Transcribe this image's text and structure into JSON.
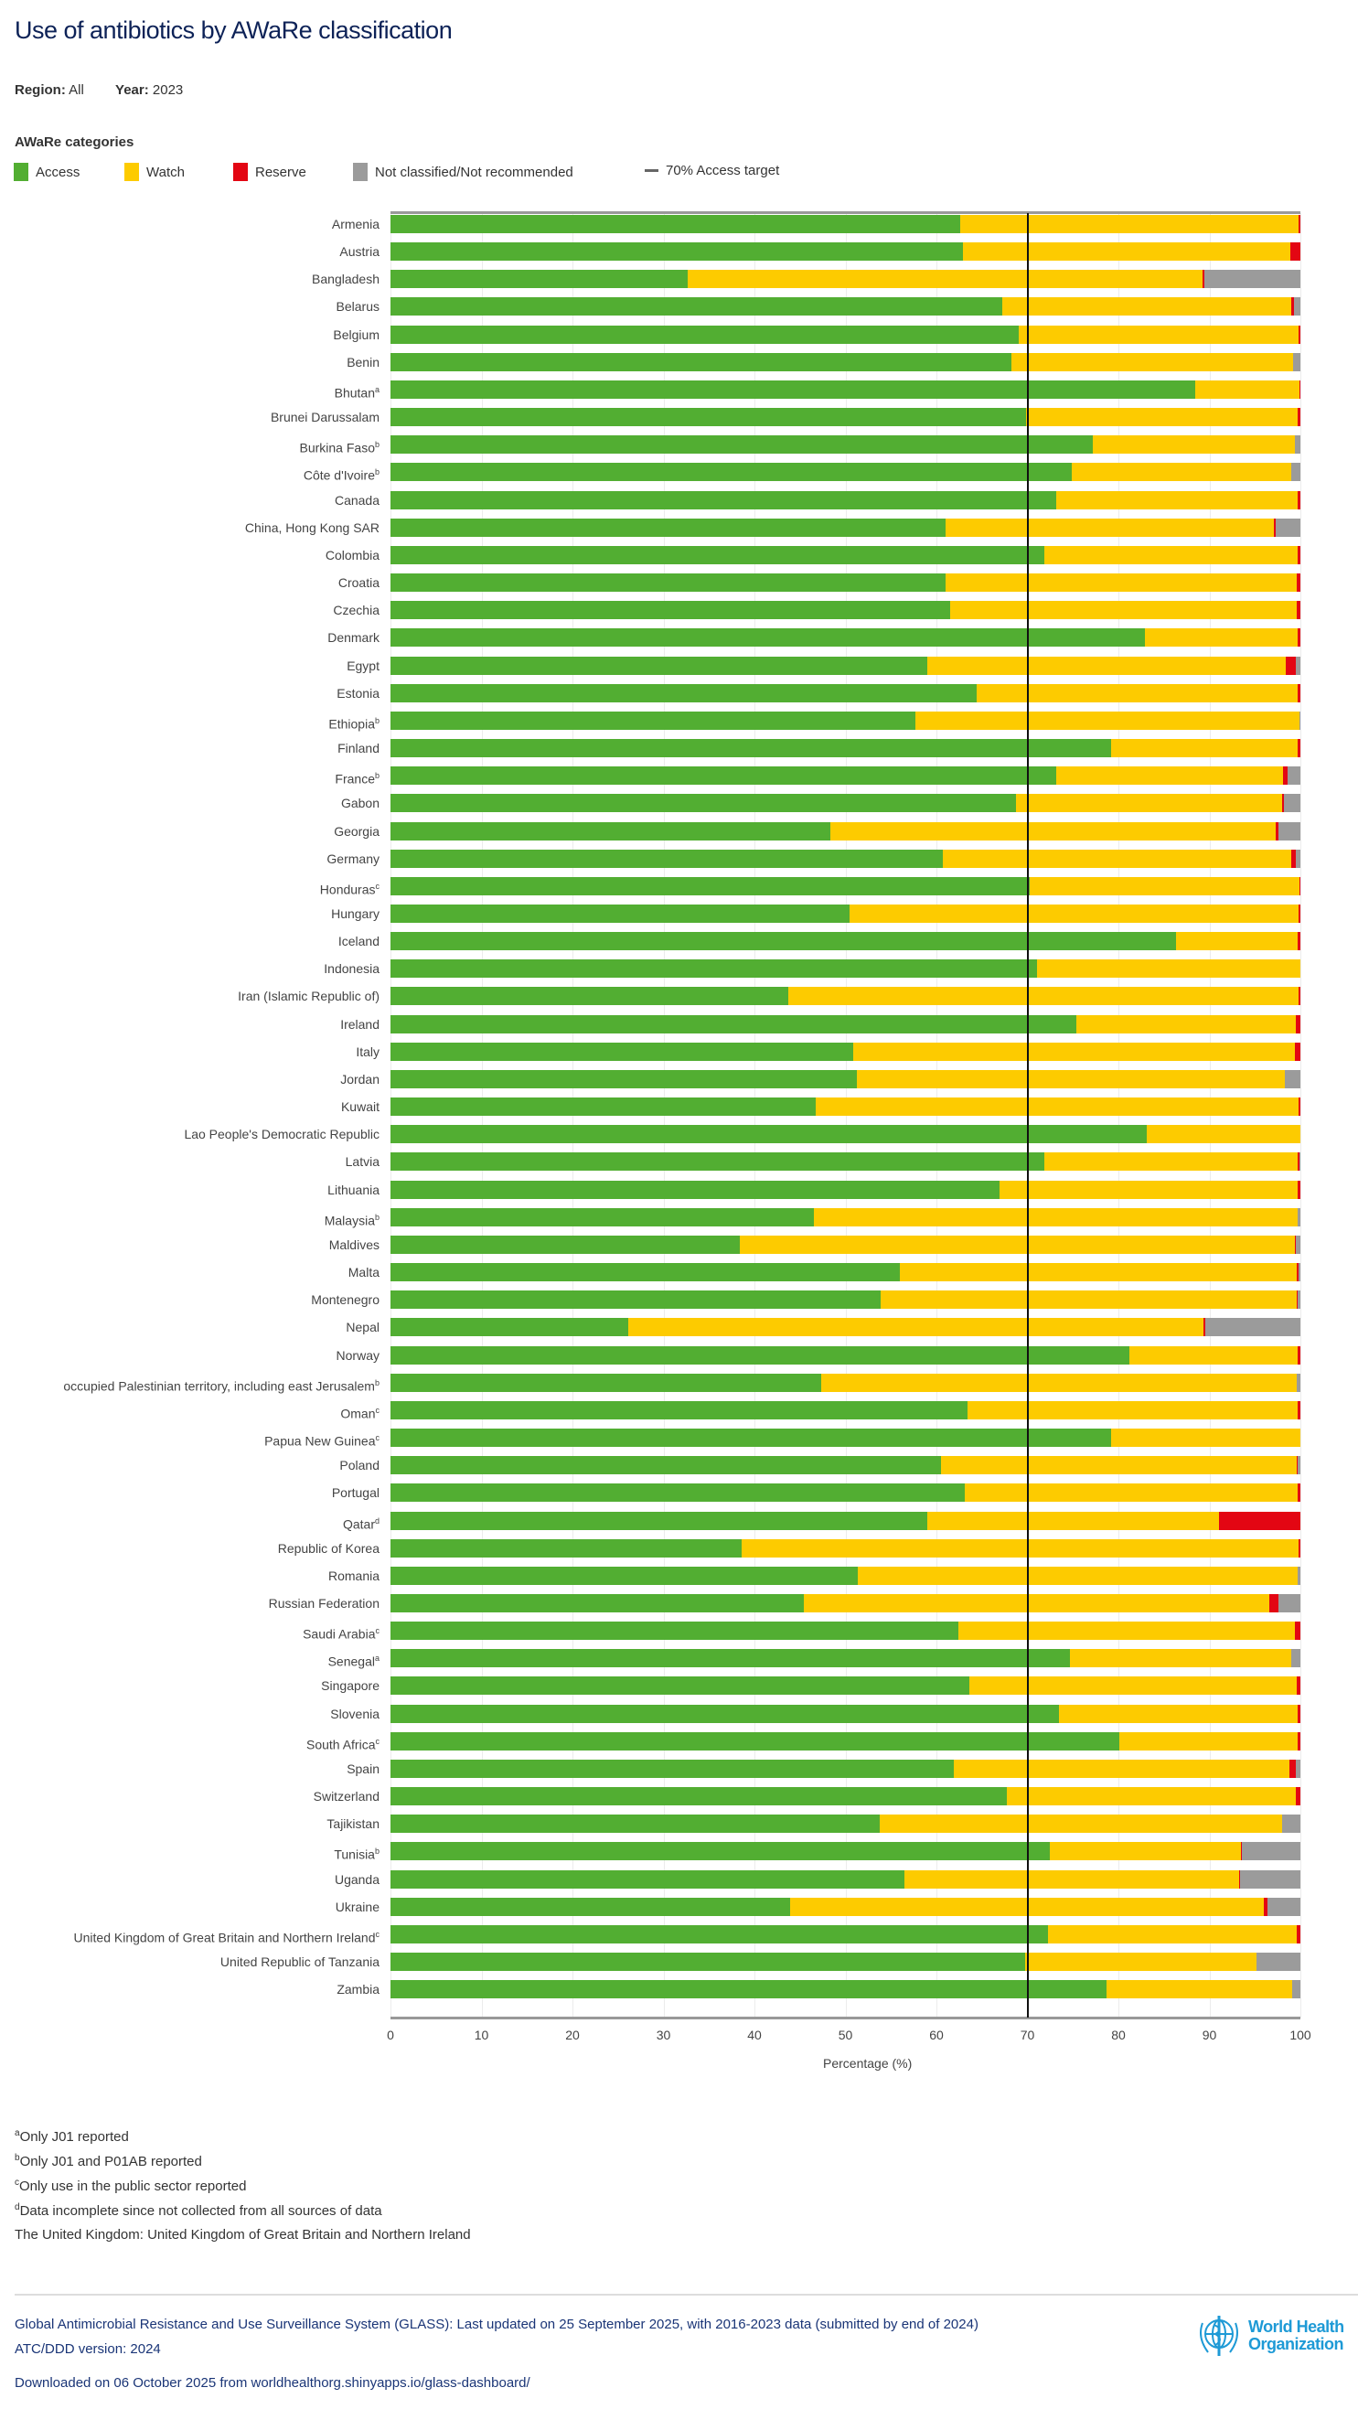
{
  "title": "Use of antibiotics by AWaRe classification",
  "filters": {
    "region_label": "Region:",
    "region": "All",
    "year_label": "Year:",
    "year": "2023"
  },
  "legend": {
    "title": "AWaRe categories",
    "items": [
      {
        "label": "Access",
        "color": "#52ae32"
      },
      {
        "label": "Watch",
        "color": "#fdcb00"
      },
      {
        "label": "Reserve",
        "color": "#e30613"
      },
      {
        "label": "Not classified/Not recommended",
        "color": "#9b9b9b"
      }
    ],
    "target_label": "70% Access target"
  },
  "chart_data": {
    "type": "bar",
    "orientation": "horizontal",
    "stacked": true,
    "xlabel": "Percentage (%)",
    "xlim": [
      0,
      100
    ],
    "xticks": [
      0,
      10,
      20,
      30,
      40,
      50,
      60,
      70,
      80,
      90,
      100
    ],
    "reference_line": {
      "x": 70,
      "label": "70% Access target"
    },
    "series_names": [
      "Access",
      "Watch",
      "Reserve",
      "Not classified/Not recommended"
    ],
    "rows": [
      {
        "country": "Armenia",
        "note": "",
        "values": [
          62.6,
          37.2,
          0.2,
          0
        ]
      },
      {
        "country": "Austria",
        "note": "",
        "values": [
          62.9,
          36.0,
          1.1,
          0
        ]
      },
      {
        "country": "Bangladesh",
        "note": "",
        "values": [
          32.7,
          56.5,
          0.2,
          10.6
        ]
      },
      {
        "country": "Belarus",
        "note": "",
        "values": [
          67.2,
          31.8,
          0.3,
          0.7
        ]
      },
      {
        "country": "Belgium",
        "note": "",
        "values": [
          69.0,
          30.8,
          0.2,
          0
        ]
      },
      {
        "country": "Benin",
        "note": "",
        "values": [
          68.2,
          31.0,
          0,
          0.8
        ]
      },
      {
        "country": "Bhutan",
        "note": "a",
        "values": [
          88.4,
          11.5,
          0.1,
          0
        ]
      },
      {
        "country": "Brunei Darussalam",
        "note": "",
        "values": [
          69.8,
          29.9,
          0.3,
          0
        ]
      },
      {
        "country": "Burkina Faso",
        "note": "b",
        "values": [
          77.2,
          22.2,
          0,
          0.6
        ]
      },
      {
        "country": "Côte d'Ivoire",
        "note": "b",
        "values": [
          74.9,
          24.1,
          0,
          1.0
        ]
      },
      {
        "country": "Canada",
        "note": "",
        "values": [
          73.2,
          26.5,
          0.3,
          0
        ]
      },
      {
        "country": "China, Hong Kong SAR",
        "note": "",
        "values": [
          61.0,
          36.1,
          0.2,
          2.7
        ]
      },
      {
        "country": "Colombia",
        "note": "",
        "values": [
          71.9,
          27.8,
          0.3,
          0
        ]
      },
      {
        "country": "Croatia",
        "note": "",
        "values": [
          61.0,
          38.6,
          0.4,
          0
        ]
      },
      {
        "country": "Czechia",
        "note": "",
        "values": [
          61.5,
          38.1,
          0.4,
          0
        ]
      },
      {
        "country": "Denmark",
        "note": "",
        "values": [
          82.9,
          16.8,
          0.3,
          0
        ]
      },
      {
        "country": "Egypt",
        "note": "",
        "values": [
          59.0,
          39.4,
          1.1,
          0.5
        ]
      },
      {
        "country": "Estonia",
        "note": "",
        "values": [
          64.4,
          35.3,
          0.3,
          0
        ]
      },
      {
        "country": "Ethiopia",
        "note": "b",
        "values": [
          57.7,
          42.2,
          0,
          0.1
        ]
      },
      {
        "country": "Finland",
        "note": "",
        "values": [
          79.2,
          20.5,
          0.3,
          0
        ]
      },
      {
        "country": "France",
        "note": "b",
        "values": [
          73.2,
          24.9,
          0.5,
          1.4
        ]
      },
      {
        "country": "Gabon",
        "note": "",
        "values": [
          68.7,
          29.3,
          0.2,
          1.8
        ]
      },
      {
        "country": "Georgia",
        "note": "",
        "values": [
          48.3,
          49.0,
          0.3,
          2.4
        ]
      },
      {
        "country": "Germany",
        "note": "",
        "values": [
          60.7,
          38.3,
          0.5,
          0.5
        ]
      },
      {
        "country": "Honduras",
        "note": "c",
        "values": [
          70.3,
          29.6,
          0.1,
          0
        ]
      },
      {
        "country": "Hungary",
        "note": "",
        "values": [
          50.5,
          49.3,
          0.2,
          0
        ]
      },
      {
        "country": "Iceland",
        "note": "",
        "values": [
          86.3,
          13.4,
          0.3,
          0
        ]
      },
      {
        "country": "Indonesia",
        "note": "",
        "values": [
          71.1,
          28.9,
          0,
          0
        ]
      },
      {
        "country": "Iran (Islamic Republic of)",
        "note": "",
        "values": [
          43.7,
          56.1,
          0.2,
          0
        ]
      },
      {
        "country": "Ireland",
        "note": "",
        "values": [
          75.4,
          24.1,
          0.5,
          0
        ]
      },
      {
        "country": "Italy",
        "note": "",
        "values": [
          50.9,
          48.5,
          0.6,
          0
        ]
      },
      {
        "country": "Jordan",
        "note": "",
        "values": [
          51.3,
          47.0,
          0,
          1.7
        ]
      },
      {
        "country": "Kuwait",
        "note": "",
        "values": [
          46.7,
          53.1,
          0.2,
          0
        ]
      },
      {
        "country": "Lao People's Democratic Republic",
        "note": "",
        "values": [
          83.1,
          16.9,
          0,
          0
        ]
      },
      {
        "country": "Latvia",
        "note": "",
        "values": [
          71.9,
          27.8,
          0.2,
          0.1
        ]
      },
      {
        "country": "Lithuania",
        "note": "",
        "values": [
          66.9,
          32.8,
          0.3,
          0
        ]
      },
      {
        "country": "Malaysia",
        "note": "b",
        "values": [
          46.5,
          53.2,
          0,
          0.3
        ]
      },
      {
        "country": "Maldives",
        "note": "",
        "values": [
          38.4,
          61.0,
          0.1,
          0.5
        ]
      },
      {
        "country": "Malta",
        "note": "",
        "values": [
          56.0,
          43.6,
          0.2,
          0.2
        ]
      },
      {
        "country": "Montenegro",
        "note": "",
        "values": [
          53.9,
          45.7,
          0.1,
          0.3
        ]
      },
      {
        "country": "Nepal",
        "note": "",
        "values": [
          26.1,
          63.2,
          0.2,
          10.5
        ]
      },
      {
        "country": "Norway",
        "note": "",
        "values": [
          81.2,
          18.5,
          0.3,
          0
        ]
      },
      {
        "country": "occupied Palestinian territory, including east Jerusalem",
        "note": "b",
        "values": [
          47.3,
          52.3,
          0,
          0.4
        ]
      },
      {
        "country": "Oman",
        "note": "c",
        "values": [
          63.4,
          36.3,
          0.3,
          0
        ]
      },
      {
        "country": "Papua New Guinea",
        "note": "c",
        "values": [
          79.2,
          20.8,
          0,
          0
        ]
      },
      {
        "country": "Poland",
        "note": "",
        "values": [
          60.5,
          39.1,
          0.1,
          0.3
        ]
      },
      {
        "country": "Portugal",
        "note": "",
        "values": [
          63.1,
          36.6,
          0.3,
          0
        ]
      },
      {
        "country": "Qatar",
        "note": "d",
        "values": [
          59.0,
          32.1,
          8.9,
          0
        ]
      },
      {
        "country": "Republic of Korea",
        "note": "",
        "values": [
          38.6,
          61.2,
          0.2,
          0
        ]
      },
      {
        "country": "Romania",
        "note": "",
        "values": [
          51.4,
          48.3,
          0,
          0.3
        ]
      },
      {
        "country": "Russian Federation",
        "note": "",
        "values": [
          45.4,
          51.2,
          1.0,
          2.4
        ]
      },
      {
        "country": "Saudi Arabia",
        "note": "c",
        "values": [
          62.4,
          37.0,
          0.6,
          0
        ]
      },
      {
        "country": "Senegal",
        "note": "a",
        "values": [
          74.7,
          24.3,
          0,
          1.0
        ]
      },
      {
        "country": "Singapore",
        "note": "",
        "values": [
          63.6,
          36.0,
          0.4,
          0
        ]
      },
      {
        "country": "Slovenia",
        "note": "",
        "values": [
          73.5,
          26.2,
          0.3,
          0
        ]
      },
      {
        "country": "South Africa",
        "note": "c",
        "values": [
          80.1,
          19.6,
          0.3,
          0
        ]
      },
      {
        "country": "Spain",
        "note": "",
        "values": [
          61.9,
          36.9,
          0.7,
          0.5
        ]
      },
      {
        "country": "Switzerland",
        "note": "",
        "values": [
          67.7,
          31.8,
          0.5,
          0
        ]
      },
      {
        "country": "Tajikistan",
        "note": "",
        "values": [
          53.8,
          44.2,
          0,
          2.0
        ]
      },
      {
        "country": "Tunisia",
        "note": "b",
        "values": [
          72.5,
          21.0,
          0.1,
          6.4
        ]
      },
      {
        "country": "Uganda",
        "note": "",
        "values": [
          56.5,
          36.8,
          0.1,
          6.6
        ]
      },
      {
        "country": "Ukraine",
        "note": "",
        "values": [
          43.9,
          52.1,
          0.4,
          3.6
        ]
      },
      {
        "country": "United Kingdom of Great Britain and Northern Ireland",
        "note": "c",
        "values": [
          72.3,
          27.3,
          0.4,
          0
        ]
      },
      {
        "country": "United Republic of Tanzania",
        "note": "",
        "values": [
          69.7,
          25.5,
          0,
          4.8
        ]
      },
      {
        "country": "Zambia",
        "note": "",
        "values": [
          78.7,
          20.4,
          0,
          0.9
        ]
      }
    ]
  },
  "footnotes": [
    {
      "mark": "a",
      "text": "Only J01 reported"
    },
    {
      "mark": "b",
      "text": "Only J01 and P01AB reported"
    },
    {
      "mark": "c",
      "text": "Only use in the public sector reported"
    },
    {
      "mark": "d",
      "text": "Data incomplete since not collected from all sources of data"
    },
    {
      "mark": "",
      "text": "The United Kingdom: United Kingdom of Great Britain and Northern Ireland"
    }
  ],
  "footer": {
    "source": "Global Antimicrobial Resistance and Use Surveillance System (GLASS): Last updated on 25 September 2025, with 2016-2023 data (submitted by end of 2024)",
    "atc": "ATC/DDD version: 2024",
    "downloaded": "Downloaded on 06 October 2025 from worldhealthorg.shinyapps.io/glass-dashboard/",
    "logo_line1": "World Health",
    "logo_line2": "Organization"
  }
}
